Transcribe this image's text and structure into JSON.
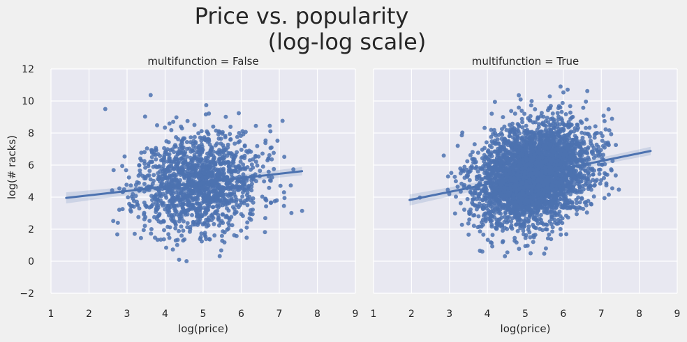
{
  "figure": {
    "title_line1": "Price vs. popularity",
    "title_line2": "(log-log scale)"
  },
  "chart_data": [
    {
      "type": "scatter",
      "title": "multifunction = False",
      "xlabel": "log(price)",
      "ylabel": "log(# racks)",
      "xlim": [
        1,
        9
      ],
      "ylim": [
        -2,
        12
      ],
      "xticks": [
        "1",
        "2",
        "3",
        "4",
        "5",
        "6",
        "7",
        "8",
        "9"
      ],
      "yticks": [
        "−2",
        "0",
        "2",
        "4",
        "6",
        "8",
        "10",
        "12"
      ],
      "grid": true,
      "regression": {
        "x": [
          1.4,
          7.6
        ],
        "y": [
          3.95,
          5.62
        ]
      },
      "color": "#4c72b0"
    },
    {
      "type": "scatter",
      "title": "multifunction = True",
      "xlabel": "log(price)",
      "ylabel": "",
      "xlim": [
        1,
        9
      ],
      "ylim": [
        -2,
        12
      ],
      "xticks": [
        "1",
        "2",
        "3",
        "4",
        "5",
        "6",
        "7",
        "8",
        "9"
      ],
      "yticks": [],
      "grid": true,
      "regression": {
        "x": [
          1.95,
          8.3
        ],
        "y": [
          3.82,
          6.88
        ]
      },
      "color": "#4c72b0"
    }
  ]
}
